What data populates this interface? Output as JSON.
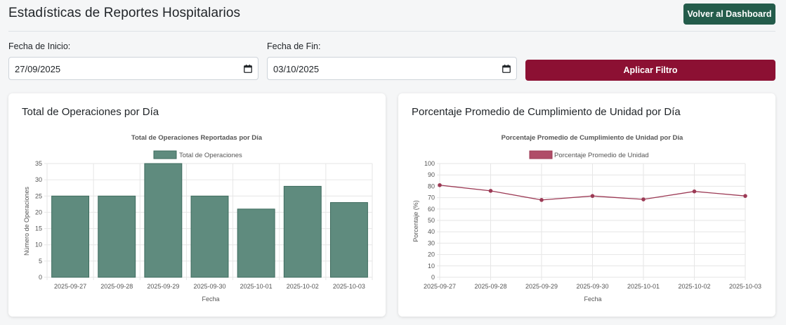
{
  "header": {
    "title": "Estadísticas de Reportes Hospitalarios",
    "back_label": "Volver al Dashboard"
  },
  "filters": {
    "start_label": "Fecha de Inicio:",
    "start_value": "27/09/2025",
    "end_label": "Fecha de Fin:",
    "end_value": "03/10/2025",
    "apply_label": "Aplicar Filtro"
  },
  "cards": {
    "left_title": "Total de Operaciones por Día",
    "right_title": "Porcentaje Promedio de Cumplimiento de Unidad por Día"
  },
  "colors": {
    "primary": "#245c4b",
    "accent": "#8c1033",
    "bar_fill": "#5f8b7e",
    "line": "#9c3a55"
  },
  "chart_data": [
    {
      "type": "bar",
      "title": "Total de Operaciones Reportadas por Día",
      "categories": [
        "2025-09-27",
        "2025-09-28",
        "2025-09-29",
        "2025-09-30",
        "2025-10-01",
        "2025-10-02",
        "2025-10-03"
      ],
      "series": [
        {
          "name": "Total de Operaciones",
          "values": [
            25,
            25,
            35,
            25,
            21,
            28,
            23
          ]
        }
      ],
      "xlabel": "Fecha",
      "ylabel": "Número de Operaciones",
      "ylim": [
        0,
        35
      ],
      "yticks": [
        0,
        5,
        10,
        15,
        20,
        25,
        30,
        35
      ],
      "legend": "top",
      "grid": true
    },
    {
      "type": "line",
      "title": "Porcentaje Promedio de Cumplimiento de Unidad por Día",
      "categories": [
        "2025-09-27",
        "2025-09-28",
        "2025-09-29",
        "2025-09-30",
        "2025-10-01",
        "2025-10-02",
        "2025-10-03"
      ],
      "series": [
        {
          "name": "Porcentaje Promedio de Unidad",
          "values": [
            81,
            76,
            68,
            71.5,
            68.5,
            75.5,
            71.5
          ]
        }
      ],
      "xlabel": "Fecha",
      "ylabel": "Porcentaje (%)",
      "ylim": [
        0,
        100
      ],
      "yticks": [
        0,
        10,
        20,
        30,
        40,
        50,
        60,
        70,
        80,
        90,
        100
      ],
      "legend": "top",
      "grid": true
    }
  ]
}
